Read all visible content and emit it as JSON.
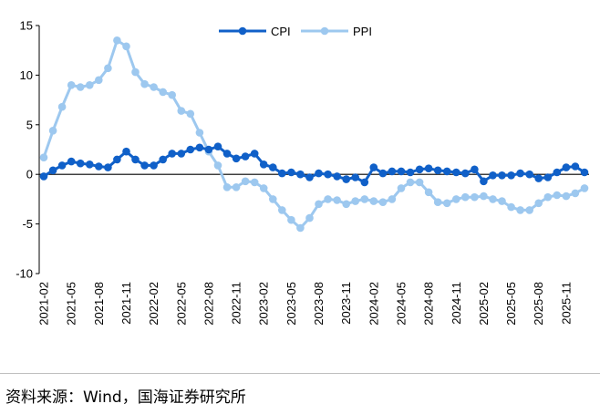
{
  "chart_data": {
    "type": "line",
    "title": "",
    "xlabel": "",
    "ylabel": "",
    "ylim": [
      -10,
      15
    ],
    "yticks": [
      "15",
      "10",
      "5",
      "0",
      "-5",
      "-10"
    ],
    "ytick_values": [
      15,
      10,
      5,
      0,
      -5,
      -10
    ],
    "categories": [
      "2021-02",
      "2021-03",
      "2021-04",
      "2021-05",
      "2021-06",
      "2021-07",
      "2021-08",
      "2021-09",
      "2021-10",
      "2021-11",
      "2021-12",
      "2022-01",
      "2022-02",
      "2022-03",
      "2022-04",
      "2022-05",
      "2022-06",
      "2022-07",
      "2022-08",
      "2022-09",
      "2022-10",
      "2022-11",
      "2022-12",
      "2023-01",
      "2023-02",
      "2023-03",
      "2023-04",
      "2023-05",
      "2023-06",
      "2023-07",
      "2023-08",
      "2023-09",
      "2023-10",
      "2023-11",
      "2023-12",
      "2024-01",
      "2024-02",
      "2024-03",
      "2024-04",
      "2024-05",
      "2024-06",
      "2024-07",
      "2024-08",
      "2024-09",
      "2024-10",
      "2024-11",
      "2024-12",
      "2025-01",
      "2025-02",
      "2025-03",
      "2025-04",
      "2025-05",
      "2025-06",
      "2025-07",
      "2025-08",
      "2025-09",
      "2025-10",
      "2025-11",
      "2025-12",
      "2026-01"
    ],
    "xtick_labels": [
      "2021-02",
      "2021-05",
      "2021-08",
      "2021-11",
      "2022-02",
      "2022-05",
      "2022-08",
      "2022-11",
      "2023-02",
      "2023-05",
      "2023-08",
      "2023-11",
      "2024-02",
      "2024-05",
      "2024-08",
      "2024-11",
      "2025-02",
      "2025-05",
      "2025-08",
      "2025-11"
    ],
    "series": [
      {
        "name": "CPI",
        "color": "#1060c8",
        "values": [
          -0.2,
          0.4,
          0.9,
          1.3,
          1.1,
          1.0,
          0.8,
          0.7,
          1.5,
          2.3,
          1.5,
          0.9,
          0.9,
          1.5,
          2.1,
          2.1,
          2.5,
          2.7,
          2.5,
          2.8,
          2.1,
          1.6,
          1.8,
          2.1,
          1.0,
          0.7,
          0.1,
          0.2,
          0.0,
          -0.3,
          0.1,
          0.0,
          -0.2,
          -0.5,
          -0.3,
          -0.8,
          0.7,
          0.1,
          0.3,
          0.3,
          0.2,
          0.5,
          0.6,
          0.4,
          0.3,
          0.2,
          0.1,
          0.5,
          -0.7,
          -0.1,
          -0.1,
          -0.1,
          0.1,
          0.0,
          -0.4,
          -0.3,
          0.2,
          0.7,
          0.8,
          0.2
        ]
      },
      {
        "name": "PPI",
        "color": "#9dc8ef",
        "values": [
          1.7,
          4.4,
          6.8,
          9.0,
          8.8,
          9.0,
          9.5,
          10.7,
          13.5,
          12.9,
          10.3,
          9.1,
          8.8,
          8.3,
          8.0,
          6.4,
          6.1,
          4.2,
          2.3,
          0.9,
          -1.3,
          -1.3,
          -0.7,
          -0.8,
          -1.4,
          -2.5,
          -3.6,
          -4.6,
          -5.4,
          -4.4,
          -3.0,
          -2.5,
          -2.6,
          -3.0,
          -2.7,
          -2.5,
          -2.7,
          -2.8,
          -2.5,
          -1.4,
          -0.8,
          -0.8,
          -1.8,
          -2.8,
          -2.9,
          -2.5,
          -2.3,
          -2.3,
          -2.2,
          -2.5,
          -2.7,
          -3.3,
          -3.6,
          -3.6,
          -2.9,
          -2.3,
          -2.1,
          -2.2,
          -1.9,
          -1.4
        ]
      }
    ],
    "legend": [
      "CPI",
      "PPI"
    ],
    "legend_position": "top-center",
    "grid": false
  },
  "source": "资料来源：Wind，国海证券研究所"
}
